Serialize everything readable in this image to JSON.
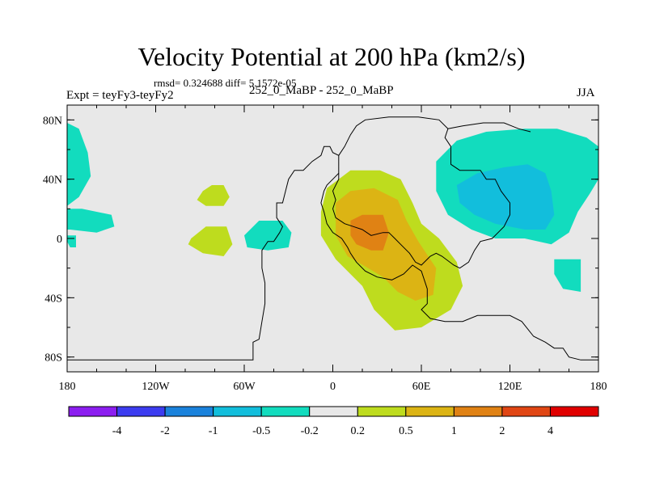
{
  "chart_data": {
    "type": "heatmap",
    "title": "Velocity Potential at 200 hPa (km2/s)",
    "stats_text": "rmsd= 0.324688 diff= 5.1572e-05",
    "left_label": "Expt = teyFy3-teyFy2",
    "center_label": "252_0_MaBP - 252_0_MaBP",
    "right_label": "JJA",
    "x_axis": {
      "range": [
        -180,
        180
      ],
      "ticks": [
        {
          "value": -180,
          "label": "180"
        },
        {
          "value": -120,
          "label": "120W"
        },
        {
          "value": -60,
          "label": "60W"
        },
        {
          "value": 0,
          "label": "0"
        },
        {
          "value": 60,
          "label": "60E"
        },
        {
          "value": 120,
          "label": "120E"
        },
        {
          "value": 180,
          "label": "180"
        }
      ]
    },
    "y_axis": {
      "range": [
        -90,
        90
      ],
      "ticks": [
        {
          "value": 80,
          "label": "80N"
        },
        {
          "value": 40,
          "label": "40N"
        },
        {
          "value": 0,
          "label": "0"
        },
        {
          "value": -40,
          "label": "40S"
        },
        {
          "value": -80,
          "label": "80S"
        }
      ]
    },
    "colorbar": {
      "colors": [
        "#8c1ef0",
        "#3c3cf0",
        "#1a82dc",
        "#12bedc",
        "#12dcbe",
        "#e8e8e8",
        "#bedc1e",
        "#dcb414",
        "#e08214",
        "#e04614",
        "#e00000"
      ],
      "labels": [
        "-4",
        "-2",
        "-1",
        "-0.5",
        "-0.2",
        "0.2",
        "0.5",
        "1",
        "2",
        "4"
      ]
    },
    "regions": [
      {
        "level": "-0.2 to -0.5",
        "color": "#12dcbe",
        "points": [
          [
            -180,
            78
          ],
          [
            -172,
            74
          ],
          [
            -166,
            58
          ],
          [
            -164,
            42
          ],
          [
            -172,
            28
          ],
          [
            -180,
            22
          ]
        ]
      },
      {
        "level": "-0.2 to -0.5",
        "color": "#12dcbe",
        "points": [
          [
            -180,
            20
          ],
          [
            -170,
            20
          ],
          [
            -150,
            16
          ],
          [
            -148,
            8
          ],
          [
            -160,
            4
          ],
          [
            -178,
            6
          ],
          [
            -180,
            6
          ]
        ]
      },
      {
        "level": "-0.2 to -0.5",
        "color": "#12dcbe",
        "points": [
          [
            -180,
            -2
          ],
          [
            -178,
            -6
          ],
          [
            -174,
            -6
          ],
          [
            -174,
            2
          ],
          [
            -180,
            2
          ]
        ]
      },
      {
        "level": "-0.2 to -0.5",
        "color": "#12dcbe",
        "points": [
          [
            -50,
            12
          ],
          [
            -34,
            12
          ],
          [
            -28,
            4
          ],
          [
            -30,
            -6
          ],
          [
            -44,
            -8
          ],
          [
            -58,
            -6
          ],
          [
            -60,
            2
          ]
        ]
      },
      {
        "level": "-0.2 to -0.5",
        "color": "#12dcbe",
        "points": [
          [
            70,
            52
          ],
          [
            84,
            66
          ],
          [
            104,
            72
          ],
          [
            130,
            74
          ],
          [
            152,
            74
          ],
          [
            172,
            68
          ],
          [
            180,
            62
          ],
          [
            180,
            40
          ],
          [
            174,
            30
          ],
          [
            166,
            18
          ],
          [
            160,
            4
          ],
          [
            148,
            -4
          ],
          [
            130,
            0
          ],
          [
            110,
            0
          ],
          [
            94,
            6
          ],
          [
            78,
            16
          ],
          [
            70,
            32
          ]
        ]
      },
      {
        "level": "-0.2 to -0.5",
        "color": "#12dcbe",
        "points": [
          [
            150,
            -14
          ],
          [
            168,
            -14
          ],
          [
            168,
            -36
          ],
          [
            156,
            -34
          ],
          [
            150,
            -24
          ]
        ]
      },
      {
        "level": "-0.5 to -1",
        "color": "#12bedc",
        "points": [
          [
            84,
            36
          ],
          [
            98,
            44
          ],
          [
            116,
            48
          ],
          [
            132,
            50
          ],
          [
            144,
            44
          ],
          [
            148,
            32
          ],
          [
            150,
            16
          ],
          [
            144,
            6
          ],
          [
            130,
            6
          ],
          [
            110,
            10
          ],
          [
            96,
            16
          ],
          [
            86,
            24
          ]
        ]
      },
      {
        "level": "0.2 to 0.5",
        "color": "#bedc1e",
        "points": [
          [
            -88,
            32
          ],
          [
            -82,
            36
          ],
          [
            -74,
            36
          ],
          [
            -70,
            28
          ],
          [
            -74,
            22
          ],
          [
            -86,
            22
          ],
          [
            -92,
            26
          ]
        ]
      },
      {
        "level": "0.2 to 0.5",
        "color": "#bedc1e",
        "points": [
          [
            -96,
            0
          ],
          [
            -86,
            8
          ],
          [
            -72,
            8
          ],
          [
            -68,
            -4
          ],
          [
            -74,
            -12
          ],
          [
            -88,
            -10
          ],
          [
            -98,
            -4
          ]
        ]
      },
      {
        "level": "0.2 to 0.5",
        "color": "#bedc1e",
        "points": [
          [
            -4,
            34
          ],
          [
            12,
            46
          ],
          [
            32,
            46
          ],
          [
            46,
            40
          ],
          [
            54,
            24
          ],
          [
            60,
            10
          ],
          [
            72,
            0
          ],
          [
            84,
            -16
          ],
          [
            88,
            -32
          ],
          [
            80,
            -48
          ],
          [
            60,
            -60
          ],
          [
            42,
            -62
          ],
          [
            28,
            -48
          ],
          [
            20,
            -32
          ],
          [
            2,
            -14
          ],
          [
            -8,
            2
          ],
          [
            -8,
            18
          ]
        ]
      },
      {
        "level": "0.5 to 1",
        "color": "#dcb414",
        "points": [
          [
            2,
            24
          ],
          [
            12,
            32
          ],
          [
            28,
            34
          ],
          [
            44,
            26
          ],
          [
            50,
            12
          ],
          [
            58,
            -2
          ],
          [
            70,
            -20
          ],
          [
            68,
            -38
          ],
          [
            56,
            -42
          ],
          [
            44,
            -36
          ],
          [
            34,
            -26
          ],
          [
            24,
            -20
          ],
          [
            10,
            -12
          ],
          [
            2,
            2
          ]
        ]
      },
      {
        "level": "1 to 2",
        "color": "#e08214",
        "points": [
          [
            12,
            12
          ],
          [
            20,
            16
          ],
          [
            34,
            16
          ],
          [
            38,
            4
          ],
          [
            34,
            -8
          ],
          [
            26,
            -8
          ],
          [
            16,
            -4
          ],
          [
            12,
            2
          ]
        ]
      }
    ],
    "coastlines": [
      [
        [
          -180,
          -82
        ],
        [
          -54,
          -82
        ],
        [
          -54,
          -70
        ],
        [
          -50,
          -68
        ],
        [
          -48,
          -56
        ],
        [
          -46,
          -44
        ],
        [
          -46,
          -30
        ],
        [
          -48,
          -20
        ],
        [
          -48,
          -8
        ],
        [
          -44,
          -2
        ],
        [
          -40,
          -2
        ],
        [
          -36,
          4
        ],
        [
          -34,
          8
        ],
        [
          -38,
          14
        ],
        [
          -38,
          24
        ],
        [
          -34,
          24
        ],
        [
          -32,
          32
        ],
        [
          -30,
          40
        ],
        [
          -26,
          46
        ],
        [
          -20,
          46
        ],
        [
          -14,
          52
        ],
        [
          -8,
          56
        ],
        [
          -6,
          62
        ],
        [
          -2,
          62
        ],
        [
          0,
          58
        ],
        [
          4,
          56
        ],
        [
          4,
          44
        ],
        [
          0,
          40
        ],
        [
          -4,
          36
        ],
        [
          -6,
          32
        ],
        [
          -8,
          24
        ],
        [
          -6,
          18
        ],
        [
          -4,
          10
        ],
        [
          0,
          4
        ],
        [
          6,
          0
        ],
        [
          10,
          -6
        ],
        [
          12,
          -10
        ],
        [
          16,
          -16
        ],
        [
          22,
          -22
        ],
        [
          30,
          -26
        ],
        [
          40,
          -28
        ],
        [
          48,
          -24
        ],
        [
          54,
          -18
        ],
        [
          60,
          -22
        ],
        [
          64,
          -34
        ],
        [
          64,
          -44
        ],
        [
          60,
          -48
        ],
        [
          66,
          -54
        ],
        [
          76,
          -56
        ],
        [
          88,
          -56
        ],
        [
          98,
          -52
        ],
        [
          106,
          -52
        ],
        [
          120,
          -52
        ],
        [
          128,
          -56
        ],
        [
          136,
          -66
        ],
        [
          144,
          -70
        ],
        [
          150,
          -74
        ],
        [
          156,
          -74
        ],
        [
          160,
          -80
        ],
        [
          168,
          -82
        ],
        [
          180,
          -82
        ]
      ],
      [
        [
          4,
          56
        ],
        [
          8,
          62
        ],
        [
          12,
          70
        ],
        [
          16,
          76
        ],
        [
          22,
          80
        ],
        [
          38,
          82
        ],
        [
          58,
          82
        ],
        [
          72,
          80
        ],
        [
          78,
          74
        ],
        [
          76,
          68
        ],
        [
          80,
          62
        ],
        [
          80,
          50
        ],
        [
          86,
          46
        ],
        [
          92,
          46
        ],
        [
          100,
          46
        ],
        [
          104,
          40
        ],
        [
          110,
          40
        ],
        [
          114,
          32
        ],
        [
          120,
          24
        ],
        [
          120,
          16
        ],
        [
          116,
          8
        ],
        [
          112,
          4
        ],
        [
          108,
          0
        ],
        [
          100,
          -2
        ],
        [
          96,
          -8
        ],
        [
          92,
          -16
        ],
        [
          86,
          -20
        ],
        [
          82,
          -18
        ],
        [
          74,
          -12
        ],
        [
          70,
          -10
        ],
        [
          66,
          -12
        ],
        [
          60,
          -18
        ],
        [
          56,
          -16
        ],
        [
          52,
          -10
        ],
        [
          46,
          -4
        ],
        [
          42,
          0
        ],
        [
          38,
          4
        ],
        [
          34,
          4
        ],
        [
          26,
          2
        ],
        [
          20,
          6
        ],
        [
          14,
          8
        ],
        [
          8,
          10
        ],
        [
          2,
          14
        ],
        [
          0,
          20
        ],
        [
          2,
          26
        ],
        [
          0,
          32
        ],
        [
          4,
          40
        ],
        [
          4,
          44
        ]
      ],
      [
        [
          78,
          74
        ],
        [
          88,
          76
        ],
        [
          102,
          78
        ],
        [
          116,
          78
        ],
        [
          126,
          74
        ],
        [
          134,
          72
        ]
      ]
    ]
  }
}
